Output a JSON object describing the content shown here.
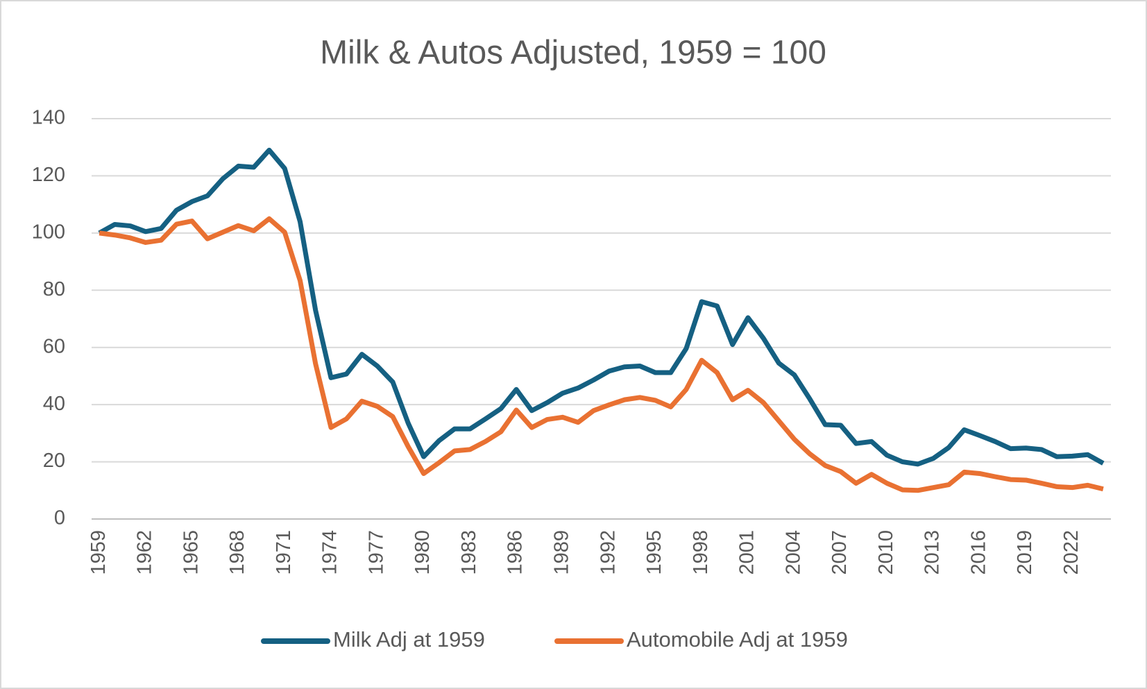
{
  "chart_data": {
    "type": "line",
    "title": "Milk & Autos Adjusted, 1959 = 100",
    "categories": [
      1959,
      null,
      null,
      1962,
      null,
      null,
      1965,
      null,
      null,
      1968,
      null,
      null,
      1971,
      null,
      null,
      1974,
      null,
      null,
      1977,
      null,
      null,
      1980,
      null,
      null,
      1983,
      null,
      null,
      1986,
      null,
      null,
      1989,
      null,
      null,
      1992,
      null,
      null,
      1995,
      null,
      null,
      1998,
      null,
      null,
      2001,
      null,
      null,
      2004,
      null,
      null,
      2007,
      null,
      null,
      2010,
      null,
      null,
      2013,
      null,
      null,
      2016,
      null,
      null,
      2019,
      null,
      null,
      2022,
      null,
      null
    ],
    "series": [
      {
        "name": "Milk Adj at 1959",
        "color": "#156082",
        "values": [
          100,
          103,
          102.5,
          100.5,
          101.6,
          108,
          111,
          113,
          119,
          123.4,
          123,
          129,
          122.6,
          104,
          73,
          49.4,
          50.7,
          57.6,
          53.5,
          47.9,
          33.5,
          21.8,
          27.4,
          31.5,
          31.5,
          35,
          38.6,
          45.3,
          37.9,
          40.7,
          44,
          45.8,
          48.6,
          51.7,
          53.2,
          53.5,
          51.2,
          51.2,
          59.6,
          76,
          74.5,
          61,
          70.4,
          63.2,
          54.5,
          50.4,
          42,
          33,
          32.8,
          26.4,
          27.1,
          22.3,
          20,
          19.2,
          21.2,
          25,
          31.2,
          29.2,
          27.1,
          24.6,
          24.8,
          24.3,
          21.8,
          22,
          22.5,
          19.5
        ]
      },
      {
        "name": "Automobile Adj at 1959",
        "color": "#e97132",
        "values": [
          100,
          99.3,
          98.3,
          96.7,
          97.5,
          103.1,
          104.2,
          98,
          100.3,
          102.6,
          100.8,
          105,
          100.3,
          83.4,
          54.3,
          32,
          35,
          41.2,
          39.4,
          35.8,
          25.3,
          15.9,
          19.7,
          23.8,
          24.3,
          27.1,
          30.5,
          38.1,
          32,
          34.8,
          35.6,
          33.8,
          37.9,
          39.9,
          41.7,
          42.5,
          41.5,
          39.2,
          45.3,
          55.5,
          51.2,
          41.7,
          45,
          40.7,
          34.3,
          27.9,
          22.8,
          18.7,
          16.6,
          12.5,
          15.6,
          12.5,
          10.2,
          10,
          11,
          12,
          16.4,
          15.9,
          14.8,
          13.8,
          13.6,
          12.5,
          11.3,
          11,
          11.8,
          10.5
        ]
      }
    ],
    "ylim": [
      0,
      140
    ],
    "yticks": [
      0,
      20,
      40,
      60,
      80,
      100,
      120,
      140
    ],
    "grid": true,
    "legend": "bottom"
  }
}
